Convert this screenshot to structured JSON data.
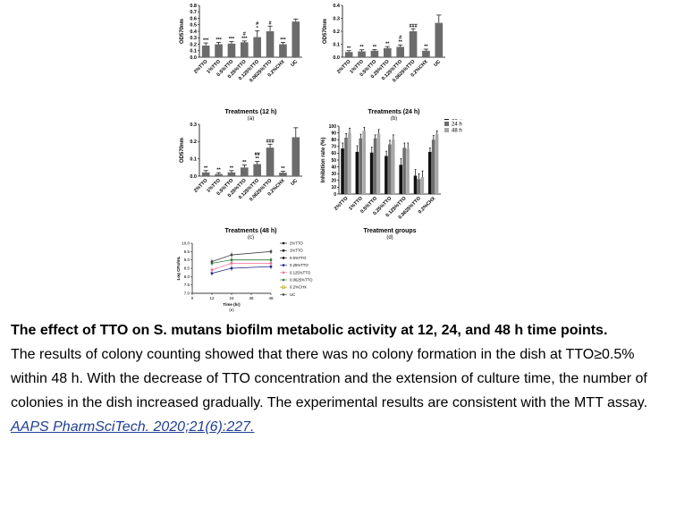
{
  "chart_data": [
    {
      "type": "bar",
      "panel_label": "(a)",
      "ylabel": "OD570nm",
      "xlabel": "Treatments (12 h)",
      "ylim": [
        0,
        0.8
      ],
      "yticks": [
        "0.0",
        "0.1",
        "0.2",
        "0.3",
        "0.4",
        "0.5",
        "0.6",
        "0.7",
        "0.8"
      ],
      "categories": [
        "2%TTO",
        "1%TTO",
        "0.5%TTO",
        "0.25%TTO",
        "0.125%TTO",
        "0.0625%TTO",
        "0.2%CHX",
        "UC"
      ],
      "values": [
        0.18,
        0.2,
        0.21,
        0.23,
        0.31,
        0.4,
        0.2,
        0.55
      ],
      "errors": [
        0.04,
        0.03,
        0.03,
        0.02,
        0.1,
        0.08,
        0.03,
        0.04
      ],
      "annotations": [
        [
          "***"
        ],
        [
          "***"
        ],
        [
          "***"
        ],
        [
          "#",
          "***"
        ],
        [
          "#",
          "*"
        ],
        [
          "#"
        ],
        [
          "***"
        ],
        []
      ]
    },
    {
      "type": "bar",
      "panel_label": "(b)",
      "ylabel": "OD570nm",
      "xlabel": "Treatments (24 h)",
      "ylim": [
        0,
        0.4
      ],
      "yticks": [
        "0.0",
        "0.1",
        "0.2",
        "0.3",
        "0.4"
      ],
      "categories": [
        "2%TTO",
        "1%TTO",
        "0.5%TTO",
        "0.25%TTO",
        "0.125%TTO",
        "0.0625%TTO",
        "0.2%CHX",
        "UC"
      ],
      "values": [
        0.04,
        0.045,
        0.05,
        0.07,
        0.08,
        0.2,
        0.05,
        0.265
      ],
      "errors": [
        0.01,
        0.012,
        0.01,
        0.012,
        0.015,
        0.02,
        0.012,
        0.06
      ],
      "annotations": [
        [
          "**"
        ],
        [
          "**"
        ],
        [
          "**"
        ],
        [
          "**"
        ],
        [
          "#",
          "**"
        ],
        [
          "###"
        ],
        [
          "**"
        ],
        []
      ]
    },
    {
      "type": "bar",
      "panel_label": "(c)",
      "ylabel": "OD570nm",
      "xlabel": "Treatments (48 h)",
      "ylim": [
        0,
        0.3
      ],
      "yticks": [
        "0.0",
        "0.1",
        "0.2",
        "0.3"
      ],
      "categories": [
        "2%TTO",
        "1%TTO",
        "0.5%TTO",
        "0.25%TTO",
        "0.125%TTO",
        "0.0625%TTO",
        "0.2%CHX",
        "UC"
      ],
      "values": [
        0.022,
        0.012,
        0.022,
        0.05,
        0.07,
        0.165,
        0.02,
        0.225
      ],
      "errors": [
        0.01,
        0.008,
        0.01,
        0.015,
        0.015,
        0.02,
        0.008,
        0.055
      ],
      "annotations": [
        [
          "**"
        ],
        [
          "**"
        ],
        [
          "**"
        ],
        [
          "**"
        ],
        [
          "##",
          "**"
        ],
        [
          "###"
        ],
        [
          "**"
        ],
        []
      ]
    },
    {
      "type": "bar",
      "panel_label": "(d)",
      "ylabel": "Inhibition rate (%)",
      "xlabel": "Treatment groups",
      "ylim": [
        0,
        100
      ],
      "yticks": [
        "0",
        "10",
        "20",
        "30",
        "40",
        "50",
        "60",
        "70",
        "80",
        "90",
        "100"
      ],
      "categories": [
        "2%TTO",
        "1%TTO",
        "0.5%TTO",
        "0.25%TTO",
        "0.125%TTO",
        "0.0625%TTO",
        "0.2%CHX"
      ],
      "series": [
        {
          "name": "12 h",
          "values": [
            67,
            62,
            61,
            56,
            43,
            27,
            62
          ],
          "errors": [
            8,
            9,
            8,
            7,
            9,
            9,
            6
          ],
          "color": "#111111"
        },
        {
          "name": "24 h",
          "values": [
            83,
            82,
            82,
            73,
            68,
            22,
            80
          ],
          "errors": [
            6,
            6,
            5,
            6,
            7,
            8,
            6
          ],
          "color": "#6e6e6e"
        },
        {
          "name": "48 h",
          "values": [
            90,
            93,
            89,
            80,
            67,
            25,
            88
          ],
          "errors": [
            7,
            5,
            6,
            7,
            8,
            9,
            5
          ],
          "color": "#a8a8a8"
        }
      ],
      "legend": "top-right"
    },
    {
      "type": "line",
      "panel_label": "(e)",
      "ylabel": "Log CFU/mL",
      "xlabel": "Time (hr)",
      "xlim": [
        0,
        48
      ],
      "ylim": [
        7.0,
        10.0
      ],
      "xticks": [
        "0",
        "12",
        "24",
        "36",
        "48"
      ],
      "yticks": [
        "7.0",
        "7.5",
        "8.0",
        "8.5",
        "9.0",
        "9.5",
        "10.0"
      ],
      "x": [
        12,
        24,
        48
      ],
      "series": [
        {
          "name": "2%TTO",
          "values": [
            null,
            null,
            null
          ],
          "color": "#000000",
          "marker": "circle"
        },
        {
          "name": "1%TTO",
          "values": [
            null,
            null,
            null
          ],
          "color": "#000000",
          "marker": "circle"
        },
        {
          "name": "0.5%TTO",
          "values": [
            null,
            null,
            null
          ],
          "color": "#000000",
          "marker": "circle"
        },
        {
          "name": "0.25%TTO",
          "values": [
            8.2,
            8.5,
            8.6
          ],
          "color": "#1a237e",
          "marker": "circle"
        },
        {
          "name": "0.125%TTO",
          "values": [
            8.4,
            8.8,
            8.8
          ],
          "color": "#ef6c9a",
          "marker": "circle"
        },
        {
          "name": "0.0625%TTO",
          "values": [
            8.8,
            9.0,
            9.0
          ],
          "color": "#2e7d32",
          "marker": "circle"
        },
        {
          "name": "0.2%CHX",
          "values": [
            null,
            null,
            null
          ],
          "color": "#b0a000",
          "marker": "square"
        },
        {
          "name": "UC",
          "values": [
            8.9,
            9.3,
            9.5
          ],
          "color": "#444444",
          "marker": "circle"
        }
      ],
      "legend": "right"
    }
  ],
  "caption": {
    "title": "The effect of TTO on S. mutans biofilm metabolic activity at 12, 24, and 48 h time points.",
    "body": "The results of colony counting showed that there was no colony formation in the dish at TTO≥0.5% within 48 h. With the decrease of TTO concentration and the extension of culture time, the number of colonies in the dish increased gradually. The experimental results are consistent with the MTT assay.",
    "citation": "AAPS PharmSciTech. 2020;21(6):227."
  }
}
